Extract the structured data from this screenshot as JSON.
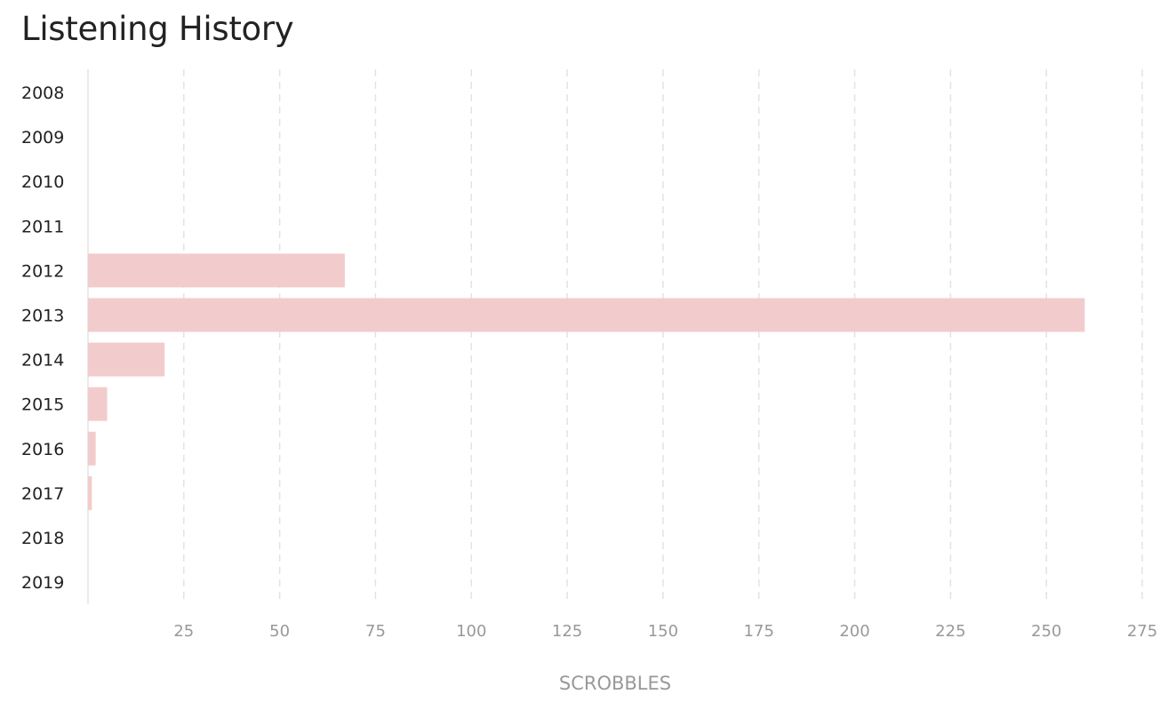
{
  "page": {
    "title": "Listening History"
  },
  "chart_data": {
    "type": "bar",
    "orientation": "horizontal",
    "title": "Listening History",
    "xlabel": "SCROBBLES",
    "ylabel": "",
    "categories": [
      "2008",
      "2009",
      "2010",
      "2011",
      "2012",
      "2013",
      "2014",
      "2015",
      "2016",
      "2017",
      "2018",
      "2019"
    ],
    "values": [
      0,
      0,
      0,
      0,
      67,
      260,
      20,
      5,
      2,
      1,
      0,
      0
    ],
    "xlim": [
      0,
      275
    ],
    "xticks": [
      25,
      50,
      75,
      100,
      125,
      150,
      175,
      200,
      225,
      250,
      275
    ],
    "grid": "vertical-dashed",
    "bar_color": "#f2cccc",
    "grid_color": "#e3e3e3"
  }
}
